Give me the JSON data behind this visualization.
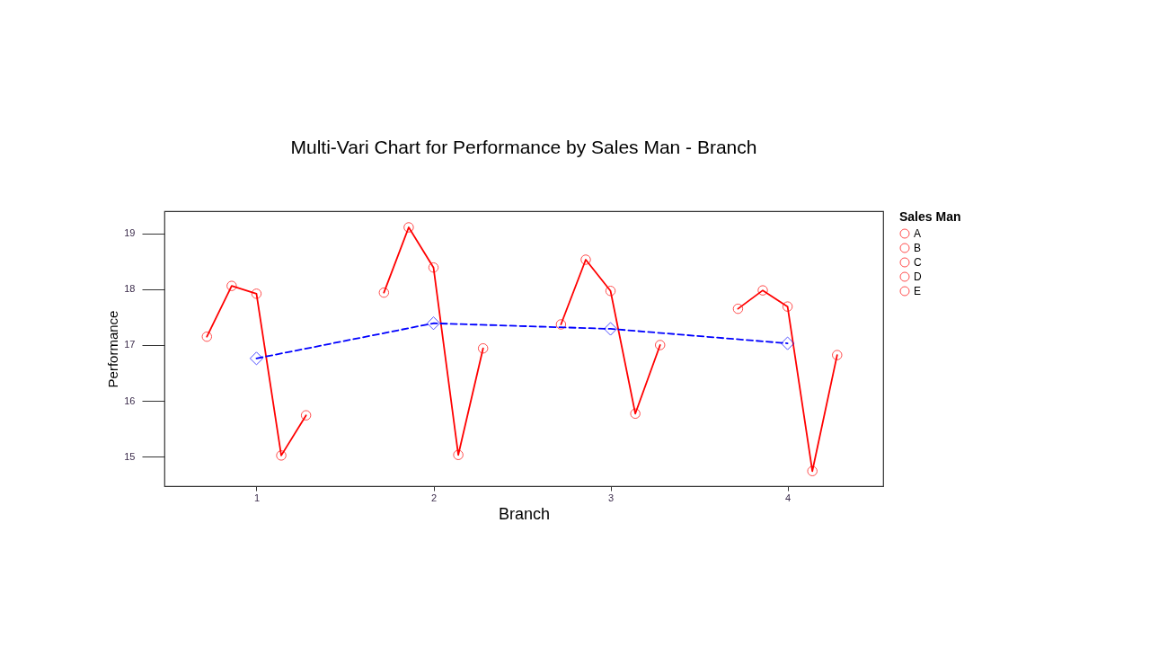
{
  "chart_data": {
    "type": "line",
    "title": "Multi-Vari Chart for Performance by Sales Man - Branch",
    "xlabel": "Branch",
    "ylabel": "Performance",
    "legend_title": "Sales Man",
    "legend": "right",
    "grid": false,
    "xlim": [
      0.48,
      4.54
    ],
    "xticks": [
      1,
      2,
      3,
      4
    ],
    "ylim": [
      14.47,
      19.4
    ],
    "yticks": [
      15,
      16,
      17,
      18,
      19
    ],
    "series": [
      {
        "color": "#ff0000",
        "marker": "none",
        "x": [
          0.72,
          0.86,
          1,
          1.14,
          1.28
        ],
        "values": [
          17.15,
          18.06,
          17.92,
          15.02,
          15.74
        ]
      },
      {
        "color": "#ff0000",
        "marker": "none",
        "x": [
          1.72,
          1.86,
          2,
          2.14,
          2.28
        ],
        "values": [
          17.94,
          19.11,
          18.39,
          15.03,
          16.94
        ]
      },
      {
        "color": "#ff0000",
        "marker": "none",
        "x": [
          2.72,
          2.86,
          3,
          3.14,
          3.28
        ],
        "values": [
          17.37,
          18.53,
          17.97,
          15.77,
          17.0
        ]
      },
      {
        "color": "#ff0000",
        "marker": "none",
        "x": [
          3.72,
          3.86,
          4,
          4.14,
          4.28
        ],
        "values": [
          17.65,
          17.98,
          17.69,
          14.74,
          16.82
        ]
      },
      {
        "type": "scatter",
        "name": "A",
        "color": "#ff0000",
        "marker": "circle",
        "x": [
          0.72,
          1.72,
          2.72,
          3.72
        ],
        "values": [
          17.15,
          17.94,
          17.37,
          17.65
        ]
      },
      {
        "type": "scatter",
        "name": "B",
        "color": "#ff0000",
        "marker": "circle",
        "x": [
          0.86,
          1.86,
          2.86,
          3.86
        ],
        "values": [
          18.06,
          19.11,
          18.53,
          17.98
        ]
      },
      {
        "type": "scatter",
        "name": "C",
        "color": "#ff0000",
        "marker": "circle",
        "x": [
          1,
          2,
          3,
          4
        ],
        "values": [
          17.92,
          18.39,
          17.97,
          17.69
        ]
      },
      {
        "type": "scatter",
        "name": "D",
        "color": "#ff0000",
        "marker": "circle",
        "x": [
          1.14,
          2.14,
          3.14,
          4.14
        ],
        "values": [
          15.02,
          15.03,
          15.77,
          14.74
        ]
      },
      {
        "type": "scatter",
        "name": "E",
        "color": "#ff0000",
        "marker": "circle",
        "x": [
          1.28,
          2.28,
          3.28,
          4.28
        ],
        "values": [
          15.74,
          16.94,
          17.0,
          16.82
        ]
      },
      {
        "color": "#0000ff",
        "marker": "diamond",
        "line_style": "dashed",
        "x": [
          1,
          2,
          3,
          4
        ],
        "values": [
          16.76,
          17.39,
          17.29,
          17.03
        ]
      }
    ]
  }
}
